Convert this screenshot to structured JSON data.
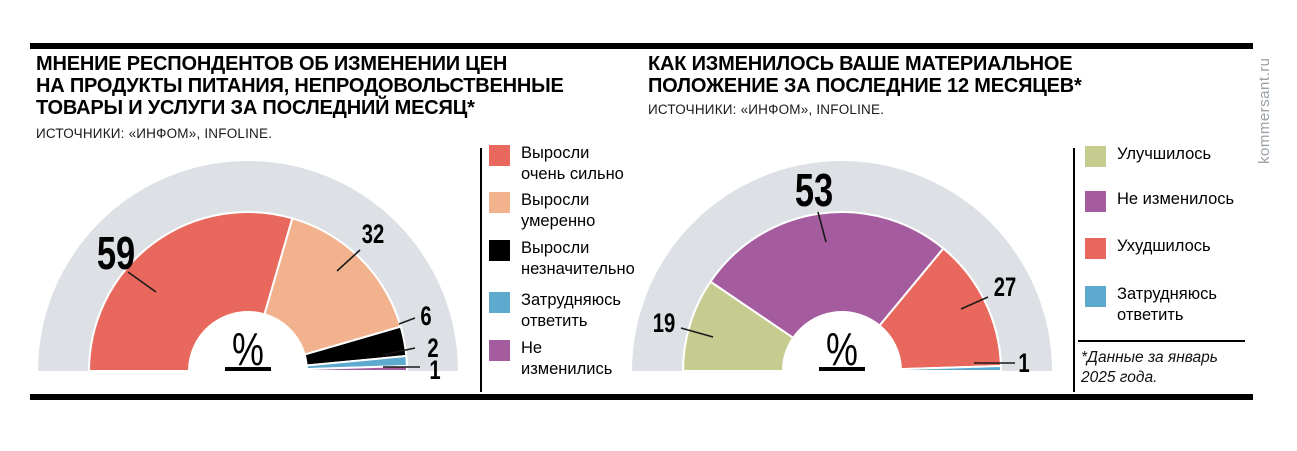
{
  "watermark": "kommersant.ru",
  "footnote": [
    "*Данные за январь",
    "2025 года."
  ],
  "charts": [
    {
      "title": [
        "МНЕНИЕ РЕСПОНДЕНТОВ ОБ ИЗМЕНЕНИИ ЦЕН",
        "НА ПРОДУКТЫ ПИТАНИЯ, НЕПРОДОВОЛЬСТВЕННЫЕ",
        "ТОВАРЫ И УСЛУГИ ЗА ПОСЛЕДНИЙ МЕСЯЦ*"
      ],
      "source": "ИСТОЧНИКИ: «ИНФОМ», INFOLINE."
    },
    {
      "title": [
        "КАК ИЗМЕНИЛОСЬ ВАШЕ МАТЕРИАЛЬНОЕ",
        "ПОЛОЖЕНИЕ ЗА ПОСЛЕДНИЕ 12 МЕСЯЦЕВ*"
      ],
      "source": "ИСТОЧНИКИ: «ИНФОМ», INFOLINE."
    }
  ],
  "chart_data": [
    {
      "type": "pie",
      "variant": "half-donut-gauge",
      "title": "Мнение респондентов об изменении цен на продукты питания, непродовольственные товары и услуги за последний месяц",
      "unit": "%",
      "total": 100,
      "legend_position": "right",
      "segments": [
        {
          "label": [
            "Выросли",
            "очень сильно"
          ],
          "value": 59,
          "color": "#e9685d"
        },
        {
          "label": [
            "Выросли",
            "умеренно"
          ],
          "value": 32,
          "color": "#f2b28e"
        },
        {
          "label": [
            "Выросли",
            "незначительно"
          ],
          "value": 6,
          "color": "#000000"
        },
        {
          "label": [
            "Затрудняюсь",
            "ответить"
          ],
          "value": 2,
          "color": "#5ea9ce"
        },
        {
          "label": [
            "Не",
            "изменились"
          ],
          "value": 1,
          "color": "#a55c9e"
        }
      ]
    },
    {
      "type": "pie",
      "variant": "half-donut-gauge",
      "title": "Как изменилось ваше материальное положение за последние 12 месяцев",
      "unit": "%",
      "total": 100,
      "legend_position": "right",
      "segments": [
        {
          "label": [
            "Улучшилось"
          ],
          "value": 19,
          "color": "#c6cb90"
        },
        {
          "label": [
            "Не изменилось"
          ],
          "value": 53,
          "color": "#a55c9e"
        },
        {
          "label": [
            "Ухудшилось"
          ],
          "value": 27,
          "color": "#e9685d"
        },
        {
          "label": [
            "Затрудняюсь",
            "ответить"
          ],
          "value": 1,
          "color": "#5ea9ce"
        }
      ]
    }
  ],
  "colors": {
    "background_ring": "#dde1e6",
    "divider": "#000000",
    "watermark": "#9aa1a8"
  }
}
